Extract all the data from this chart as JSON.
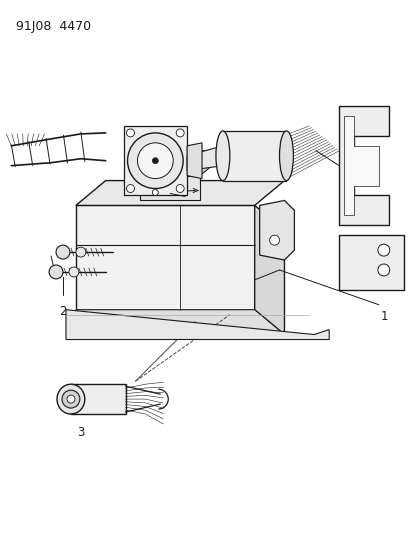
{
  "title": "91J08  4470",
  "background_color": "#ffffff",
  "line_color": "#1a1a1a",
  "label_1": "1",
  "label_2": "2",
  "label_3": "3",
  "label_fontsize": 8.5,
  "fig_width": 4.14,
  "fig_height": 5.33,
  "dpi": 100
}
